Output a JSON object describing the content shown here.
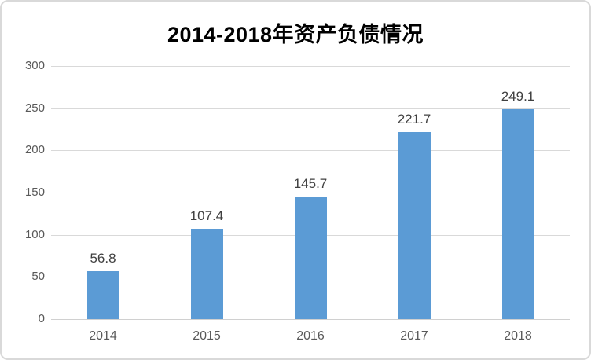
{
  "chart_data": {
    "type": "bar",
    "title": "2014-2018年资产负债情况",
    "categories": [
      "2014",
      "2015",
      "2016",
      "2017",
      "2018"
    ],
    "values": [
      56.8,
      107.4,
      145.7,
      221.7,
      249.1
    ],
    "data_labels": [
      "56.8",
      "107.4",
      "145.7",
      "221.7",
      "249.1"
    ],
    "xlabel": "",
    "ylabel": "",
    "ylim": [
      0,
      300
    ],
    "ytick_step": 50,
    "ytick_labels": [
      "0",
      "50",
      "100",
      "150",
      "200",
      "250",
      "300"
    ],
    "grid": "horizontal",
    "legend": "none",
    "colors": {
      "bar": "#5b9bd5",
      "gridline": "#d9d9d9",
      "axis_labels": "#595959",
      "data_labels": "#404040",
      "title": "#000000",
      "frame_border": "#d9d9d9",
      "background": "#ffffff"
    }
  }
}
